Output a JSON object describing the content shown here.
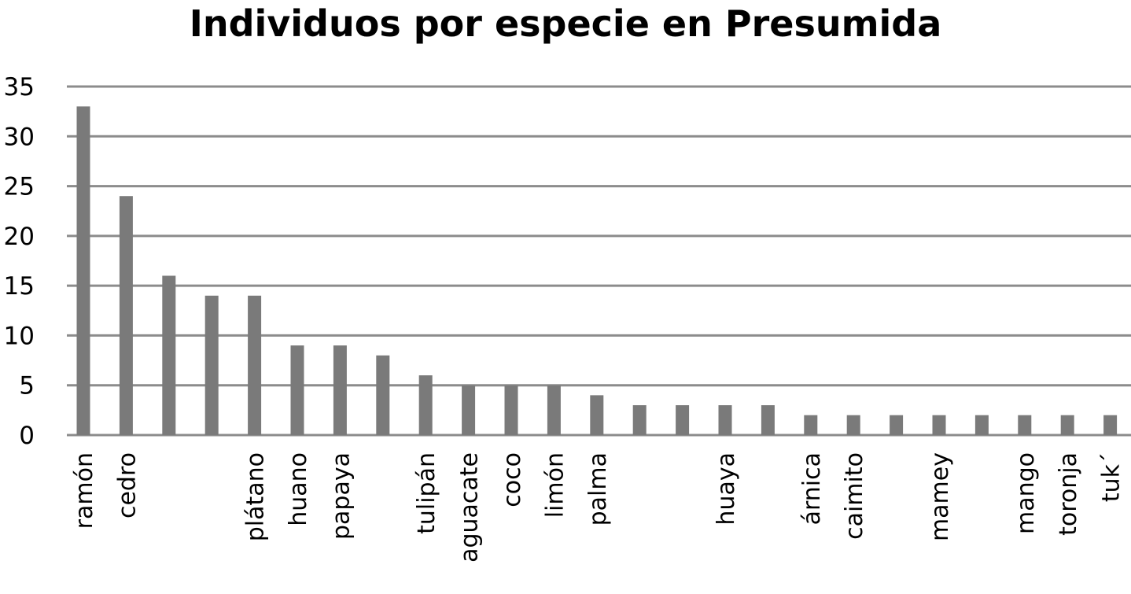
{
  "chart_data": {
    "type": "bar",
    "title": "Individuos por especie en Presumida",
    "xlabel": "",
    "ylabel": "",
    "ylim": [
      0,
      35
    ],
    "yticks": [
      0,
      5,
      10,
      15,
      20,
      25,
      30,
      35
    ],
    "grid": true,
    "legend": "none",
    "bar_color": "#7a7a7a",
    "grid_color": "#8c8c8c",
    "categories": [
      "ramón",
      "cedro",
      "",
      "",
      "plátano",
      "huano",
      "papaya",
      "",
      "tulipán",
      "aguacate",
      "coco",
      "limón",
      "palma",
      "",
      "",
      "huaya",
      "",
      "árnica",
      "caimito",
      "",
      "mamey",
      "",
      "mango",
      "toronja",
      "tuk´"
    ],
    "values": [
      33,
      24,
      16,
      14,
      14,
      9,
      9,
      8,
      6,
      5,
      5,
      5,
      4,
      3,
      3,
      3,
      3,
      2,
      2,
      2,
      2,
      2,
      2,
      2,
      2
    ]
  }
}
